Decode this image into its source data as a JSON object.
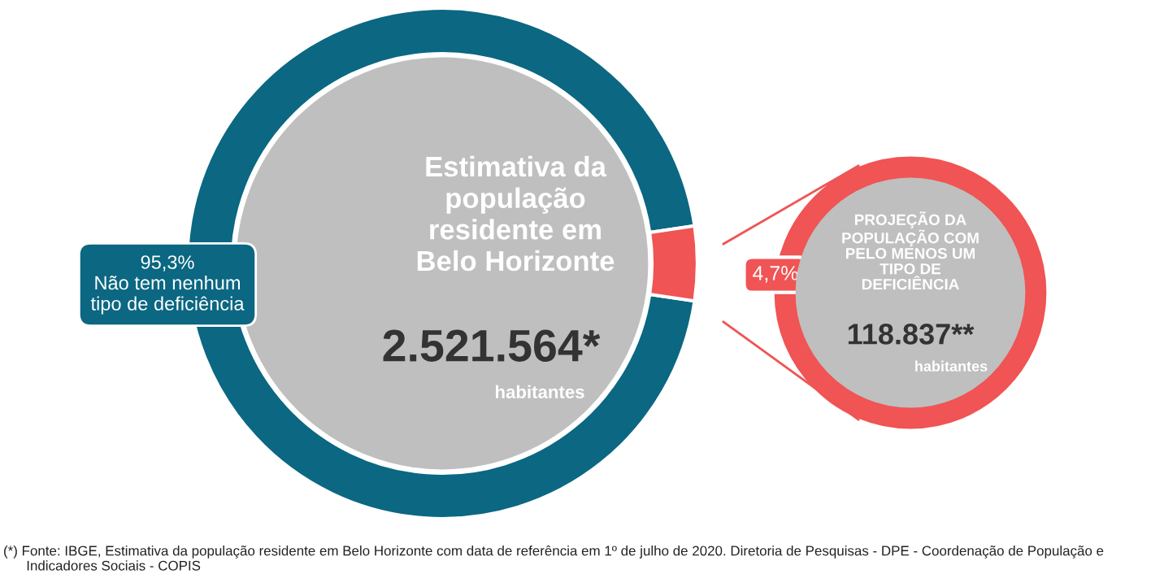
{
  "chart_data": {
    "type": "donut",
    "categories": [
      "Não tem nenhum\ntipo de deficiência",
      null
    ],
    "values": [
      95.3,
      4.7
    ],
    "colors": [
      "#0b6782",
      "#f05454"
    ],
    "value_labels": [
      "95,3%",
      "4,7%"
    ],
    "title": "Estimativa da\npopulação\nresidente em\nBelo Horizonte",
    "annotations": [
      "2.521.564*",
      "habitantes",
      "PROJEÇÃO DA\nPOPULAÇÃO COM\nPELO MENOS UM\nTIPO DE\nDEFICIÊNCIA",
      "118.837**",
      "habitantes",
      "(*) Fonte: IBGE, Estimativa da população residente em Belo Horizonte com data de referência em 1º de julho de 2020. Diretoria de Pesquisas - DPE - Coordenação de População e\n      Indicadores Sociais - COPIS"
    ]
  }
}
